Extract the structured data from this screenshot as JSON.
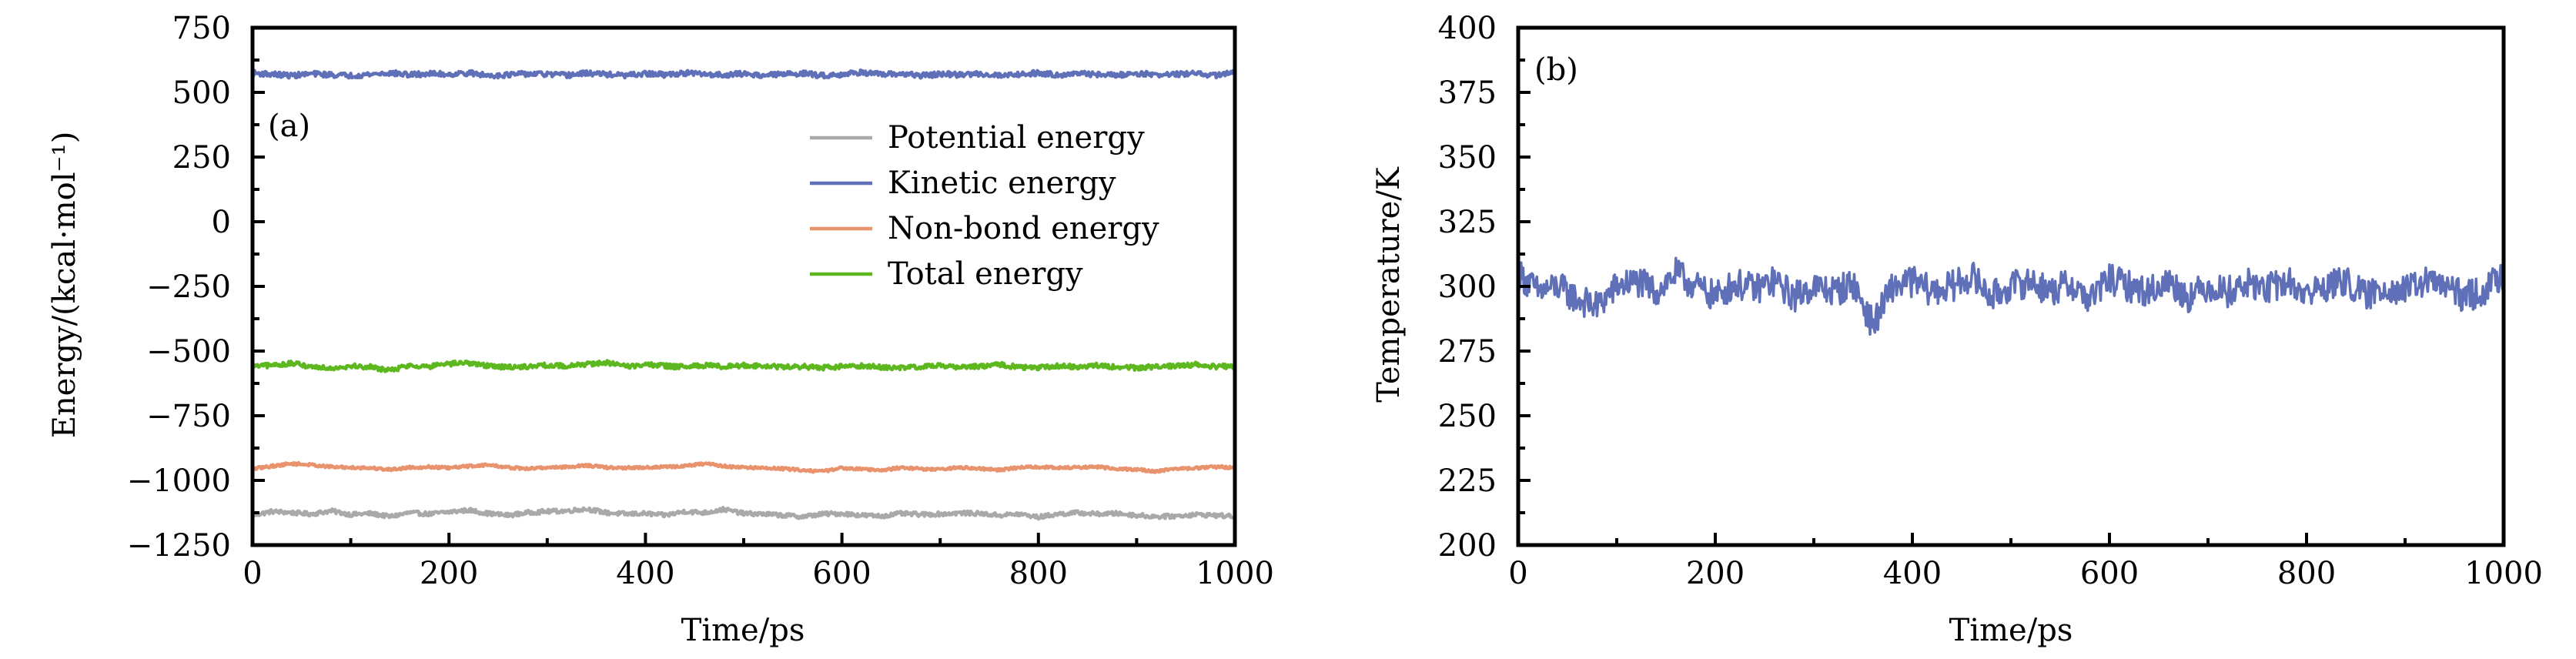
{
  "chart_data": [
    {
      "type": "line",
      "panel_label": "(a)",
      "title": "",
      "xlabel": "Time/ps",
      "ylabel": "Energy/(kcal·mol⁻¹)",
      "xlim": [
        0,
        1000
      ],
      "ylim": [
        -1250,
        750
      ],
      "x_ticks": [
        0,
        200,
        400,
        600,
        800,
        1000
      ],
      "x_tick_labels": [
        "0",
        "200",
        "400",
        "600",
        "800",
        "1000"
      ],
      "x_minor_ticks": [
        100,
        300,
        500,
        700,
        900
      ],
      "y_ticks": [
        750,
        500,
        250,
        0,
        -250,
        -500,
        -750,
        -1000,
        -1250
      ],
      "y_tick_labels": [
        "750",
        "500",
        "250",
        "0",
        "−250",
        "−500",
        "−750",
        "−1000",
        "−1250"
      ],
      "y_minor_ticks": [
        625,
        375,
        125,
        -125,
        -375,
        -625,
        -875,
        -1125
      ],
      "grid": false,
      "legend_position": "top-right",
      "x": [
        0,
        20,
        40,
        60,
        80,
        100,
        120,
        140,
        160,
        180,
        200,
        220,
        240,
        260,
        280,
        300,
        320,
        340,
        360,
        380,
        400,
        420,
        440,
        460,
        480,
        500,
        520,
        540,
        560,
        580,
        600,
        620,
        640,
        660,
        680,
        700,
        720,
        740,
        760,
        780,
        800,
        820,
        840,
        860,
        880,
        900,
        920,
        940,
        960,
        980,
        1000
      ],
      "series": [
        {
          "name": "Potential energy",
          "color": "#A9A9A9",
          "mean": -1130,
          "values": [
            -1135,
            -1120,
            -1125,
            -1130,
            -1118,
            -1132,
            -1128,
            -1140,
            -1125,
            -1130,
            -1122,
            -1115,
            -1128,
            -1135,
            -1125,
            -1120,
            -1118,
            -1110,
            -1125,
            -1130,
            -1128,
            -1135,
            -1120,
            -1125,
            -1112,
            -1128,
            -1130,
            -1135,
            -1140,
            -1130,
            -1128,
            -1135,
            -1138,
            -1128,
            -1132,
            -1130,
            -1126,
            -1128,
            -1135,
            -1130,
            -1142,
            -1130,
            -1125,
            -1130,
            -1128,
            -1135,
            -1140,
            -1138,
            -1132,
            -1135,
            -1140
          ]
        },
        {
          "name": "Kinetic energy",
          "color": "#5F70B8",
          "mean": 570,
          "values": [
            575,
            570,
            565,
            572,
            568,
            565,
            570,
            575,
            568,
            572,
            570,
            575,
            565,
            568,
            572,
            570,
            566,
            574,
            570,
            565,
            572,
            568,
            575,
            570,
            568,
            572,
            566,
            570,
            574,
            565,
            570,
            578,
            568,
            572,
            565,
            570,
            568,
            572,
            566,
            570,
            575,
            568,
            572,
            570,
            566,
            574,
            568,
            570,
            572,
            566,
            578
          ]
        },
        {
          "name": "Non-bond energy",
          "color": "#E8926E",
          "mean": -950,
          "values": [
            -955,
            -945,
            -935,
            -940,
            -948,
            -950,
            -952,
            -958,
            -950,
            -948,
            -952,
            -945,
            -940,
            -950,
            -955,
            -950,
            -948,
            -942,
            -950,
            -952,
            -950,
            -948,
            -945,
            -935,
            -945,
            -950,
            -952,
            -955,
            -960,
            -965,
            -952,
            -955,
            -962,
            -950,
            -955,
            -958,
            -950,
            -955,
            -960,
            -950,
            -948,
            -952,
            -950,
            -948,
            -955,
            -958,
            -965,
            -955,
            -952,
            -948,
            -950
          ]
        },
        {
          "name": "Total energy",
          "color": "#5CB81E",
          "mean": -560,
          "values": [
            -560,
            -555,
            -548,
            -560,
            -565,
            -558,
            -562,
            -575,
            -555,
            -560,
            -550,
            -545,
            -558,
            -562,
            -560,
            -555,
            -558,
            -550,
            -545,
            -560,
            -552,
            -558,
            -562,
            -555,
            -560,
            -555,
            -558,
            -562,
            -560,
            -565,
            -560,
            -558,
            -562,
            -565,
            -560,
            -555,
            -562,
            -560,
            -552,
            -562,
            -565,
            -558,
            -560,
            -555,
            -562,
            -565,
            -560,
            -558,
            -552,
            -560,
            -558
          ]
        }
      ]
    },
    {
      "type": "line",
      "panel_label": "(b)",
      "title": "",
      "xlabel": "Time/ps",
      "ylabel": "Temperature/K",
      "xlim": [
        0,
        1000
      ],
      "ylim": [
        200,
        400
      ],
      "x_ticks": [
        0,
        200,
        400,
        600,
        800,
        1000
      ],
      "x_tick_labels": [
        "0",
        "200",
        "400",
        "600",
        "800",
        "1000"
      ],
      "x_minor_ticks": [
        100,
        300,
        500,
        700,
        900
      ],
      "y_ticks": [
        400,
        375,
        350,
        325,
        300,
        275,
        250,
        225,
        200
      ],
      "y_tick_labels": [
        "400",
        "375",
        "350",
        "325",
        "300",
        "275",
        "250",
        "225",
        "200"
      ],
      "y_minor_ticks": [
        387.5,
        362.5,
        337.5,
        312.5,
        287.5,
        262.5,
        237.5,
        212.5
      ],
      "grid": false,
      "legend_position": "none",
      "x": [
        0,
        20,
        40,
        60,
        80,
        100,
        120,
        140,
        160,
        180,
        200,
        220,
        240,
        260,
        280,
        300,
        320,
        340,
        360,
        380,
        400,
        420,
        440,
        460,
        480,
        500,
        520,
        540,
        560,
        580,
        600,
        620,
        640,
        660,
        680,
        700,
        720,
        740,
        760,
        780,
        800,
        820,
        840,
        860,
        880,
        900,
        920,
        940,
        960,
        980,
        1000
      ],
      "series": [
        {
          "name": "Temperature",
          "color": "#5F70B8",
          "mean": 300,
          "values": [
            305,
            298,
            300,
            295,
            292,
            300,
            302,
            298,
            305,
            300,
            296,
            301,
            299,
            302,
            296,
            300,
            298,
            301,
            285,
            300,
            302,
            298,
            300,
            304,
            296,
            300,
            302,
            298,
            301,
            295,
            303,
            300,
            298,
            302,
            296,
            300,
            298,
            301,
            299,
            302,
            297,
            300,
            302,
            296,
            300,
            298,
            302,
            300,
            296,
            298,
            305
          ]
        }
      ]
    }
  ]
}
